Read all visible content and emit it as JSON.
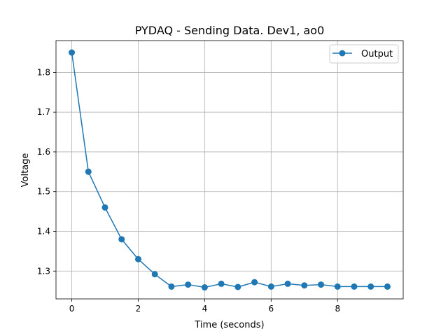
{
  "chart_data": {
    "type": "line",
    "title": "PYDAQ - Sending Data. Dev1, ao0",
    "xlabel": "Time (seconds)",
    "ylabel": "Voltage",
    "xlim": [
      -0.475,
      9.975
    ],
    "ylim": [
      1.23,
      1.88
    ],
    "xticks": [
      0,
      2,
      4,
      6,
      8
    ],
    "yticks": [
      1.3,
      1.4,
      1.5,
      1.6,
      1.7,
      1.8
    ],
    "grid": true,
    "legend_position": "top-right",
    "series": [
      {
        "name": "Output",
        "color": "#1f77b4",
        "marker": "circle",
        "x": [
          0,
          0.5,
          1,
          1.5,
          2,
          2.5,
          3,
          3.5,
          4,
          4.5,
          5,
          5.5,
          6,
          6.5,
          7,
          7.5,
          8,
          8.5,
          9,
          9.5
        ],
        "y": [
          1.85,
          1.55,
          1.46,
          1.38,
          1.33,
          1.292,
          1.261,
          1.266,
          1.259,
          1.268,
          1.26,
          1.272,
          1.261,
          1.268,
          1.264,
          1.266,
          1.261,
          1.261,
          1.261,
          1.261
        ]
      }
    ]
  }
}
